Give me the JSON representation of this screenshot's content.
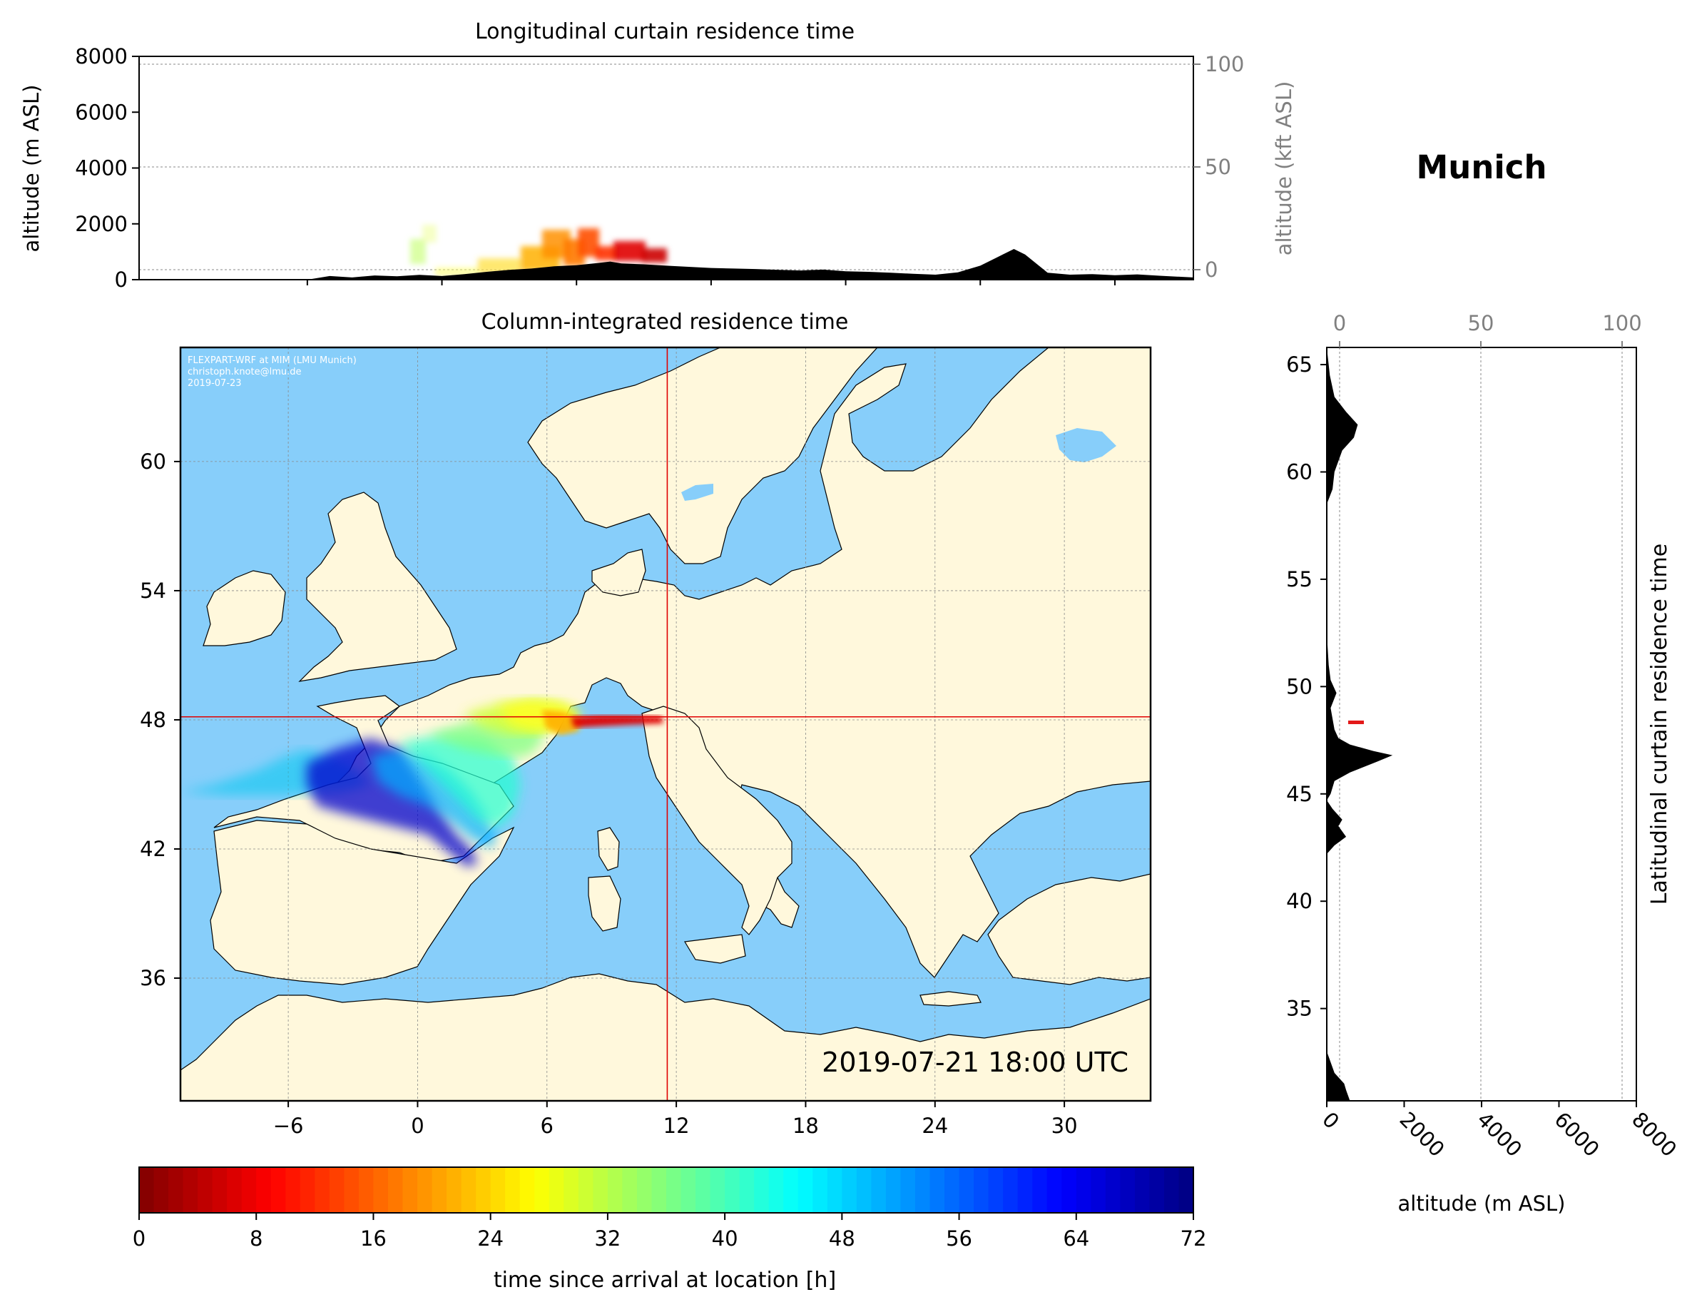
{
  "location_title": "Munich",
  "colors": {
    "ocean": "#87CEFA",
    "land": "#FFF8DC",
    "terrain": "#000000",
    "crosshair": "#E00000",
    "grid": "#888888",
    "secondary_axis_text": "#808080"
  },
  "chart_data": [
    {
      "type": "area",
      "title": "Longitudinal curtain residence time",
      "ylabel": "altitude (m ASL)",
      "y2label": "altitude (kft ASL)",
      "ylim": [
        0,
        8000
      ],
      "yticks": [
        "0",
        "2000",
        "4000",
        "6000",
        "8000"
      ],
      "y2ticks": [
        "0",
        "50",
        "100"
      ],
      "xlim": [
        -13.5,
        33.5
      ],
      "terrain_profile": {
        "lon": [
          -13.5,
          -6,
          -5,
          -4,
          -3,
          -2,
          -1,
          0,
          1,
          2,
          3,
          4,
          5,
          6,
          7,
          7.5,
          8,
          9,
          10,
          11,
          12,
          13,
          14,
          15,
          16,
          17,
          18,
          19,
          20,
          21,
          22,
          23,
          24,
          25,
          25.5,
          26,
          27,
          28,
          29,
          30,
          31,
          32,
          33.5
        ],
        "altitude_m": [
          0,
          0,
          130,
          80,
          150,
          120,
          170,
          130,
          200,
          280,
          350,
          400,
          480,
          520,
          600,
          650,
          580,
          550,
          500,
          460,
          420,
          400,
          380,
          350,
          330,
          360,
          300,
          280,
          250,
          210,
          180,
          260,
          500,
          900,
          1100,
          900,
          250,
          180,
          200,
          160,
          190,
          140,
          80
        ]
      }
    },
    {
      "type": "heatmap",
      "title": "Column-integrated residence time",
      "xticks": [
        "−6",
        "0",
        "6",
        "12",
        "18",
        "24",
        "30"
      ],
      "yticks": [
        "36",
        "42",
        "48",
        "54",
        "60"
      ],
      "xlim": [
        -11,
        34
      ],
      "ylim": [
        30.3,
        65.3
      ],
      "release_location": {
        "lon": 11.58,
        "lat": 48.14
      },
      "timestamp": "2019-07-21 18:00 UTC",
      "watermark": [
        "FLEXPART-WRF at MIM (LMU Munich)",
        "christoph.knote@lmu.de",
        "2019-07-23"
      ]
    },
    {
      "type": "area",
      "title": "Latitudinal curtain residence time",
      "xlabel": "altitude (m ASL)",
      "xticks": [
        "0",
        "2000",
        "4000",
        "6000",
        "8000"
      ],
      "x2ticks": [
        "0",
        "50",
        "100"
      ],
      "xlim": [
        0,
        8000
      ],
      "yticks": [
        "35",
        "40",
        "45",
        "50",
        "55",
        "60",
        "65"
      ],
      "ylim": [
        30.7,
        65.8
      ],
      "terrain_profile": {
        "lat": [
          30.7,
          31.2,
          31.5,
          32.0,
          33,
          42.2,
          42.6,
          43.0,
          43.5,
          43.8,
          44.3,
          44.7,
          45.0,
          45.6,
          46.0,
          46.5,
          46.8,
          47.0,
          47.3,
          47.6,
          48.0,
          48.5,
          49,
          49.7,
          50.3,
          51,
          52.5,
          58.5,
          59.2,
          60,
          61,
          61.6,
          62.2,
          62.8,
          63.5,
          64.5,
          65.8
        ],
        "altitude_m": [
          600,
          500,
          450,
          200,
          0,
          0,
          200,
          500,
          300,
          400,
          150,
          0,
          100,
          200,
          600,
          1300,
          1700,
          1200,
          600,
          300,
          200,
          150,
          100,
          250,
          100,
          50,
          0,
          0,
          150,
          200,
          400,
          700,
          800,
          500,
          200,
          80,
          0
        ]
      }
    },
    {
      "type": "bar",
      "title": "",
      "xlabel": "time since arrival at location [h]",
      "xlim": [
        0,
        72
      ],
      "xticks": [
        "0",
        "8",
        "16",
        "24",
        "32",
        "40",
        "48",
        "56",
        "64",
        "72"
      ],
      "colormap": "jet_r",
      "segments": 72
    }
  ]
}
